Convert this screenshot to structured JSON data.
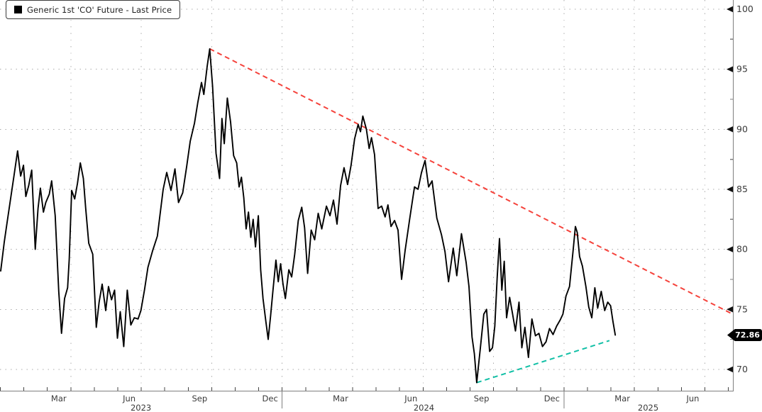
{
  "legend": {
    "label": "Generic 1st 'CO' Future - Last Price",
    "swatch_color": "#000000"
  },
  "last_price": {
    "value": "72.86",
    "bg": "#000000",
    "text_color": "#ffffff"
  },
  "colors": {
    "price_line": "#000000",
    "downtrend_line": "#f5423b",
    "uptrend_line": "#0fbfa5",
    "grid": "#ababab",
    "axis": "#7f7f7f",
    "tick": "#444444",
    "label": "#3a3a3a"
  },
  "chart_data": {
    "type": "line",
    "title": "Generic 1st 'CO' Future - Last Price",
    "x_unit": "months since 2023-01-01",
    "xlim": [
      0,
      31.2
    ],
    "ylim": [
      67.5,
      100.8
    ],
    "grid": "dotted",
    "legend_position": "top-left",
    "y_axis_side": "right",
    "y_ticks": [
      100,
      95,
      90,
      85,
      80,
      75,
      70
    ],
    "y_minor_ticks": [
      97.5,
      92.5,
      87.5,
      82.5,
      77.5,
      72.5
    ],
    "x_month_labels": [
      {
        "t": 2.5,
        "label": "Mar"
      },
      {
        "t": 5.5,
        "label": "Jun"
      },
      {
        "t": 8.5,
        "label": "Sep"
      },
      {
        "t": 11.5,
        "label": "Dec"
      },
      {
        "t": 14.5,
        "label": "Mar"
      },
      {
        "t": 17.5,
        "label": "Jun"
      },
      {
        "t": 20.5,
        "label": "Sep"
      },
      {
        "t": 23.5,
        "label": "Dec"
      },
      {
        "t": 26.5,
        "label": "Mar"
      },
      {
        "t": 29.5,
        "label": "Jun"
      }
    ],
    "x_year_labels": [
      {
        "t": 6.0,
        "label": "2023"
      },
      {
        "t": 18.05,
        "label": "2024"
      },
      {
        "t": 27.6,
        "label": "2025"
      }
    ],
    "year_separators_t": [
      12,
      24
    ],
    "quarter_grid_t": [
      3,
      6,
      9,
      12,
      15,
      18,
      21,
      24,
      27,
      30
    ],
    "last_price": 72.86,
    "series": [
      {
        "name": "Generic 1st 'CO' Future - Last Price",
        "color": "#000000",
        "points": [
          [
            0.03,
            78.2
          ],
          [
            0.18,
            80.6
          ],
          [
            0.3,
            82.2
          ],
          [
            0.45,
            84.2
          ],
          [
            0.6,
            86.2
          ],
          [
            0.75,
            88.2
          ],
          [
            0.88,
            86.1
          ],
          [
            1.0,
            87.0
          ],
          [
            1.1,
            84.4
          ],
          [
            1.22,
            85.3
          ],
          [
            1.35,
            86.6
          ],
          [
            1.5,
            80.0
          ],
          [
            1.62,
            83.4
          ],
          [
            1.72,
            85.1
          ],
          [
            1.85,
            83.1
          ],
          [
            1.95,
            83.9
          ],
          [
            2.1,
            84.6
          ],
          [
            2.2,
            85.7
          ],
          [
            2.35,
            82.8
          ],
          [
            2.5,
            76.5
          ],
          [
            2.62,
            73.0
          ],
          [
            2.75,
            75.9
          ],
          [
            2.88,
            76.8
          ],
          [
            2.95,
            79.2
          ],
          [
            3.05,
            84.9
          ],
          [
            3.18,
            84.2
          ],
          [
            3.3,
            85.5
          ],
          [
            3.42,
            87.2
          ],
          [
            3.55,
            85.9
          ],
          [
            3.65,
            83.4
          ],
          [
            3.78,
            80.5
          ],
          [
            3.95,
            79.6
          ],
          [
            4.1,
            73.5
          ],
          [
            4.22,
            75.6
          ],
          [
            4.35,
            77.1
          ],
          [
            4.5,
            74.9
          ],
          [
            4.62,
            76.9
          ],
          [
            4.75,
            75.8
          ],
          [
            4.88,
            76.6
          ],
          [
            5.0,
            72.6
          ],
          [
            5.12,
            74.8
          ],
          [
            5.27,
            71.9
          ],
          [
            5.42,
            76.6
          ],
          [
            5.57,
            73.7
          ],
          [
            5.72,
            74.3
          ],
          [
            5.88,
            74.2
          ],
          [
            6.0,
            74.9
          ],
          [
            6.15,
            76.6
          ],
          [
            6.3,
            78.5
          ],
          [
            6.5,
            79.9
          ],
          [
            6.7,
            81.1
          ],
          [
            6.95,
            85.0
          ],
          [
            7.1,
            86.4
          ],
          [
            7.28,
            84.9
          ],
          [
            7.45,
            86.7
          ],
          [
            7.6,
            83.9
          ],
          [
            7.78,
            84.7
          ],
          [
            7.95,
            86.9
          ],
          [
            8.1,
            89.0
          ],
          [
            8.28,
            90.5
          ],
          [
            8.42,
            92.2
          ],
          [
            8.58,
            93.9
          ],
          [
            8.68,
            92.9
          ],
          [
            8.82,
            95.2
          ],
          [
            8.93,
            96.7
          ],
          [
            9.05,
            93.6
          ],
          [
            9.2,
            88.0
          ],
          [
            9.35,
            85.9
          ],
          [
            9.45,
            90.9
          ],
          [
            9.55,
            88.8
          ],
          [
            9.68,
            92.6
          ],
          [
            9.82,
            90.6
          ],
          [
            9.95,
            87.8
          ],
          [
            10.08,
            87.2
          ],
          [
            10.18,
            85.2
          ],
          [
            10.28,
            86.0
          ],
          [
            10.38,
            84.3
          ],
          [
            10.48,
            81.7
          ],
          [
            10.58,
            83.1
          ],
          [
            10.68,
            81.0
          ],
          [
            10.78,
            82.5
          ],
          [
            10.88,
            80.2
          ],
          [
            11.0,
            82.8
          ],
          [
            11.1,
            78.3
          ],
          [
            11.2,
            75.9
          ],
          [
            11.32,
            74.0
          ],
          [
            11.42,
            72.5
          ],
          [
            11.52,
            74.4
          ],
          [
            11.62,
            76.5
          ],
          [
            11.75,
            79.1
          ],
          [
            11.85,
            77.3
          ],
          [
            11.95,
            78.8
          ],
          [
            12.05,
            77.1
          ],
          [
            12.15,
            75.9
          ],
          [
            12.3,
            78.3
          ],
          [
            12.42,
            77.7
          ],
          [
            12.55,
            79.6
          ],
          [
            12.7,
            82.4
          ],
          [
            12.85,
            83.5
          ],
          [
            12.97,
            81.8
          ],
          [
            13.1,
            78.0
          ],
          [
            13.25,
            81.6
          ],
          [
            13.4,
            80.8
          ],
          [
            13.55,
            83.0
          ],
          [
            13.7,
            81.7
          ],
          [
            13.9,
            83.6
          ],
          [
            14.05,
            82.8
          ],
          [
            14.2,
            84.1
          ],
          [
            14.35,
            82.1
          ],
          [
            14.5,
            85.3
          ],
          [
            14.65,
            86.8
          ],
          [
            14.8,
            85.4
          ],
          [
            14.95,
            87.0
          ],
          [
            15.1,
            89.2
          ],
          [
            15.25,
            90.4
          ],
          [
            15.35,
            89.8
          ],
          [
            15.45,
            91.1
          ],
          [
            15.6,
            90.0
          ],
          [
            15.72,
            88.4
          ],
          [
            15.82,
            89.3
          ],
          [
            15.95,
            87.9
          ],
          [
            16.1,
            83.4
          ],
          [
            16.25,
            83.6
          ],
          [
            16.4,
            82.7
          ],
          [
            16.52,
            83.7
          ],
          [
            16.65,
            81.9
          ],
          [
            16.8,
            82.4
          ],
          [
            16.95,
            81.6
          ],
          [
            17.1,
            77.5
          ],
          [
            17.25,
            79.9
          ],
          [
            17.45,
            82.6
          ],
          [
            17.65,
            85.2
          ],
          [
            17.8,
            85.0
          ],
          [
            17.95,
            86.4
          ],
          [
            18.1,
            87.4
          ],
          [
            18.25,
            85.2
          ],
          [
            18.4,
            85.7
          ],
          [
            18.6,
            82.6
          ],
          [
            18.8,
            81.2
          ],
          [
            18.95,
            79.8
          ],
          [
            19.1,
            77.3
          ],
          [
            19.3,
            80.1
          ],
          [
            19.45,
            77.8
          ],
          [
            19.65,
            81.3
          ],
          [
            19.85,
            78.9
          ],
          [
            19.97,
            76.9
          ],
          [
            20.1,
            72.7
          ],
          [
            20.2,
            71.3
          ],
          [
            20.3,
            68.9
          ],
          [
            20.45,
            71.7
          ],
          [
            20.6,
            74.6
          ],
          [
            20.72,
            75.0
          ],
          [
            20.85,
            71.5
          ],
          [
            20.97,
            71.8
          ],
          [
            21.07,
            73.6
          ],
          [
            21.17,
            77.6
          ],
          [
            21.27,
            80.9
          ],
          [
            21.37,
            76.6
          ],
          [
            21.47,
            79.0
          ],
          [
            21.57,
            74.3
          ],
          [
            21.7,
            76.0
          ],
          [
            21.82,
            74.7
          ],
          [
            21.95,
            73.2
          ],
          [
            22.1,
            75.6
          ],
          [
            22.22,
            71.8
          ],
          [
            22.35,
            73.5
          ],
          [
            22.5,
            71.0
          ],
          [
            22.65,
            74.2
          ],
          [
            22.8,
            72.8
          ],
          [
            22.95,
            73.0
          ],
          [
            23.1,
            71.9
          ],
          [
            23.25,
            72.3
          ],
          [
            23.4,
            73.4
          ],
          [
            23.55,
            72.9
          ],
          [
            23.7,
            73.6
          ],
          [
            23.85,
            74.1
          ],
          [
            23.97,
            74.6
          ],
          [
            24.1,
            76.1
          ],
          [
            24.25,
            76.9
          ],
          [
            24.4,
            79.8
          ],
          [
            24.5,
            81.9
          ],
          [
            24.58,
            81.4
          ],
          [
            24.68,
            79.4
          ],
          [
            24.8,
            78.6
          ],
          [
            24.95,
            76.9
          ],
          [
            25.07,
            75.2
          ],
          [
            25.2,
            74.3
          ],
          [
            25.33,
            76.8
          ],
          [
            25.45,
            75.1
          ],
          [
            25.6,
            76.5
          ],
          [
            25.75,
            74.9
          ],
          [
            25.88,
            75.6
          ],
          [
            26.0,
            75.3
          ],
          [
            26.1,
            74.0
          ],
          [
            26.2,
            72.86
          ]
        ]
      }
    ],
    "trendlines": [
      {
        "name": "downtrend-resistance",
        "color": "#f5423b",
        "style": "dashed",
        "from": [
          8.93,
          96.7
        ],
        "to": [
          31.2,
          74.6
        ]
      },
      {
        "name": "uptrend-support",
        "color": "#0fbfa5",
        "style": "dashed",
        "from": [
          20.3,
          68.9
        ],
        "to": [
          25.95,
          72.4
        ]
      }
    ]
  }
}
